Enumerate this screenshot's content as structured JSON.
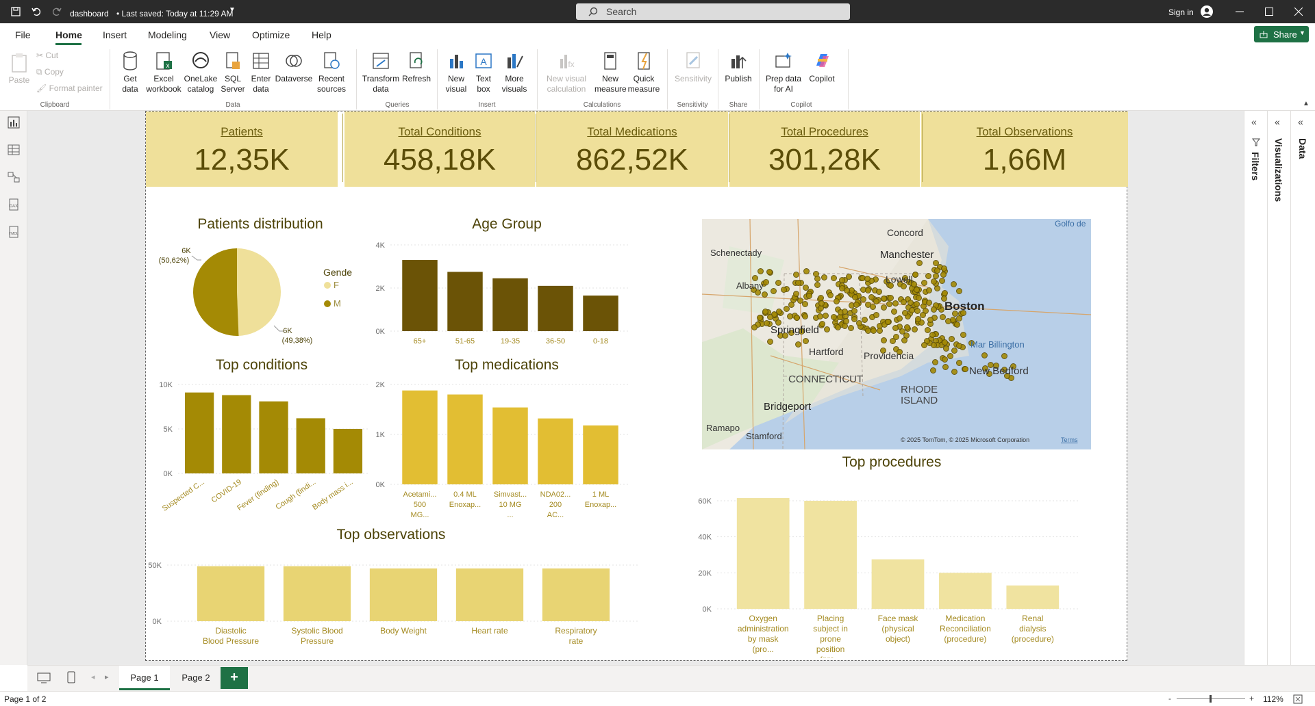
{
  "titlebar": {
    "file_name": "dashboard",
    "saved": "• Last saved: Today at 11:29 AM",
    "search_placeholder": "Search",
    "sign_in": "Sign in"
  },
  "menu": {
    "items": [
      "File",
      "Home",
      "Insert",
      "Modeling",
      "View",
      "Optimize",
      "Help"
    ],
    "share": "Share"
  },
  "ribbon": {
    "clipboard": {
      "paste": "Paste",
      "cut": "Cut",
      "copy": "Copy",
      "format_painter": "Format painter",
      "group": "Clipboard"
    },
    "data": {
      "get_data": "Get data",
      "excel": "Excel workbook",
      "onelake": "OneLake catalog",
      "sql": "SQL Server",
      "enter": "Enter data",
      "dataverse": "Dataverse",
      "recent": "Recent sources",
      "group": "Data"
    },
    "queries": {
      "transform": "Transform data",
      "refresh": "Refresh",
      "group": "Queries"
    },
    "insert": {
      "new_visual": "New visual",
      "text_box": "Text box",
      "more_visuals": "More visuals",
      "group": "Insert"
    },
    "calculations": {
      "new_visual_calc": "New visual calculation",
      "new_measure": "New measure",
      "quick_measure": "Quick measure",
      "group": "Calculations"
    },
    "sensitivity": {
      "label": "Sensitivity",
      "group": "Sensitivity"
    },
    "share": {
      "publish": "Publish",
      "group": "Share"
    },
    "copilot": {
      "prep": "Prep data for AI",
      "copilot": "Copilot",
      "group": "Copilot"
    }
  },
  "kpis": [
    {
      "label": "Patients",
      "value": "12,35K"
    },
    {
      "label": "Total Conditions",
      "value": "458,18K"
    },
    {
      "label": "Total Medications",
      "value": "862,52K"
    },
    {
      "label": "Total Procedures",
      "value": "301,28K"
    },
    {
      "label": "Total Observations",
      "value": "1,66M"
    }
  ],
  "colors": {
    "kpi_bg": "#efe09a",
    "dark_olive": "#6b5306",
    "olive": "#a48a05",
    "gold": "#e2be33",
    "light_gold": "#e8d473",
    "pale_gold": "#f0e3a0",
    "accent_green": "#1e7145"
  },
  "chart_data": [
    {
      "type": "pie",
      "title": "Patients distribution",
      "legend_title": "Gender",
      "categories": [
        "F",
        "M"
      ],
      "values": [
        49.38,
        50.62
      ],
      "labels": [
        "6K\n(49,38%)",
        "6K\n(50,62%)"
      ],
      "colors": [
        "#efe09a",
        "#a48a05"
      ]
    },
    {
      "type": "bar",
      "title": "Age Group",
      "categories": [
        "65+",
        "51-65",
        "19-35",
        "36-50",
        "0-18"
      ],
      "values": [
        3300,
        2750,
        2450,
        2100,
        1650
      ],
      "ylim": [
        0,
        4000
      ],
      "yticks": [
        "0K",
        "2K",
        "4K"
      ]
    },
    {
      "type": "bar",
      "title": "Top conditions",
      "categories": [
        "Suspected C...",
        "COVID-19",
        "Fever (finding)",
        "Cough (findi...",
        "Body mass i..."
      ],
      "values": [
        9100,
        8800,
        8100,
        6200,
        5000
      ],
      "ylim": [
        0,
        10000
      ],
      "yticks": [
        "0K",
        "5K",
        "10K"
      ]
    },
    {
      "type": "bar",
      "title": "Top medications",
      "categories": [
        "Acetami... 500 MG...",
        "0.4 ML Enoxap...",
        "Simvast... 10 MG ...",
        "NDA02... 200 AC...",
        "1 ML Enoxap..."
      ],
      "values": [
        1880,
        1800,
        1540,
        1320,
        1180
      ],
      "ylim": [
        0,
        2000
      ],
      "yticks": [
        "0K",
        "1K",
        "2K"
      ]
    },
    {
      "type": "bar",
      "title": "Top observations",
      "categories": [
        "Diastolic Blood Pressure",
        "Systolic Blood Pressure",
        "Body Weight",
        "Heart rate",
        "Respiratory rate"
      ],
      "values": [
        49000,
        49000,
        47000,
        47000,
        47000
      ],
      "ylim": [
        0,
        50000
      ],
      "yticks": [
        "0K",
        "50K"
      ]
    },
    {
      "type": "bar",
      "title": "Top procedures",
      "categories": [
        "Oxygen administration by mask (pro...",
        "Placing subject in prone position (pro...",
        "Face mask (physical object)",
        "Medication Reconciliation (procedure)",
        "Renal dialysis (procedure)"
      ],
      "values": [
        61500,
        60000,
        27500,
        20000,
        13000
      ],
      "ylim": [
        0,
        60000
      ],
      "yticks": [
        "0K",
        "20K",
        "40K",
        "60K"
      ]
    }
  ],
  "map": {
    "places": [
      "Concord",
      "Manchester",
      "Schenectady",
      "Albany",
      "Lowell",
      "Boston",
      "Springfield",
      "Hartford",
      "Providencia",
      "CONNECTICUT",
      "RHODE ISLAND",
      "Bridgeport",
      "New Bedford",
      "Mar Billington",
      "Stamford",
      "Ramapo",
      "Golfo de"
    ],
    "copyright": "© 2025 TomTom, © 2025 Microsoft Corporation",
    "terms": "Terms"
  },
  "panes": {
    "filters": "Filters",
    "visualizations": "Visualizations",
    "data": "Data"
  },
  "pages": {
    "tabs": [
      "Page 1",
      "Page 2"
    ],
    "add": "+"
  },
  "status": {
    "page": "Page 1 of 2",
    "zoom": "112%",
    "minus": "-",
    "plus": "+"
  }
}
